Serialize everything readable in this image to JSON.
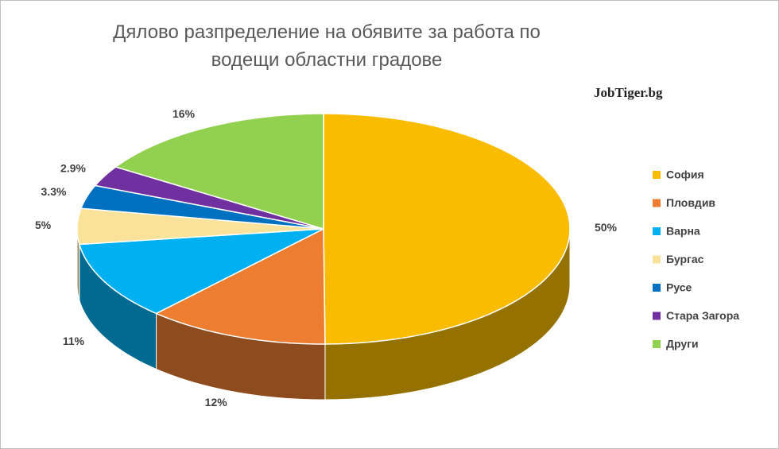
{
  "chart_data": {
    "type": "pie3d",
    "title": "Дялово разпределение на обявите за работа по водещи областни градове",
    "annotation": "JobTiger.bg",
    "categories": [
      "София",
      "Пловдив",
      "Варна",
      "Бургас",
      "Русе",
      "Стара Загора",
      "Други"
    ],
    "values": [
      50,
      12,
      11,
      5,
      3.3,
      2.9,
      16
    ],
    "value_labels": [
      "50%",
      "12%",
      "11%",
      "5%",
      "3.3%",
      "2.9%",
      "16%"
    ],
    "colors": [
      "#F9BC00",
      "#ED7D31",
      "#00B0F0",
      "#FAE29A",
      "#0070C0",
      "#7030A0",
      "#92D050"
    ],
    "legend": "right"
  }
}
